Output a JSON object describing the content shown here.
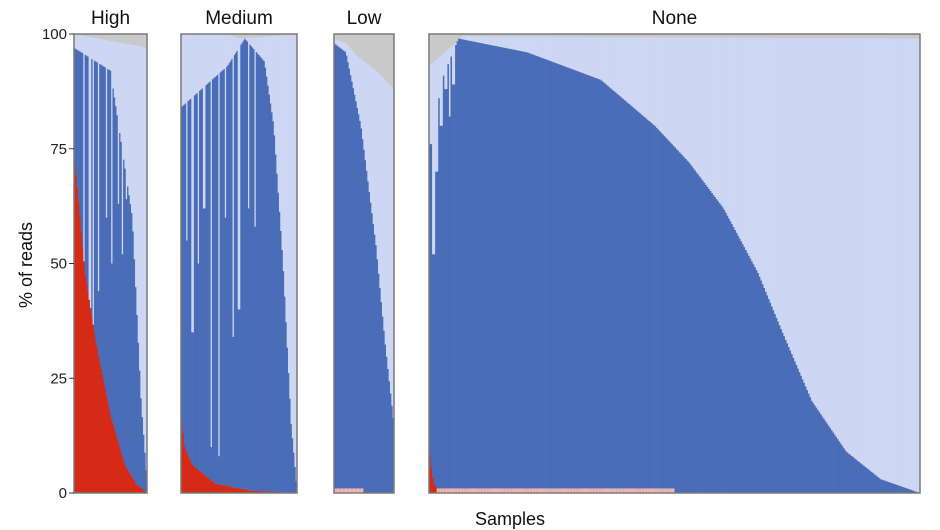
{
  "chart_data": {
    "type": "bar",
    "stacked": true,
    "xlabel": "Samples",
    "ylabel": "% of reads",
    "ylim": [
      0,
      100
    ],
    "yticks": [
      0,
      25,
      50,
      75,
      100
    ],
    "colors": {
      "red": "#d42a16",
      "pink": "#f2b8b2",
      "blue": "#4a6db8",
      "light_blue": "#cdd6f2",
      "grey": "#c9c9c9"
    },
    "panels": [
      {
        "title": "High",
        "samples": 55,
        "red_profile": [
          [
            0,
            73
          ],
          [
            0.05,
            66
          ],
          [
            0.15,
            48
          ],
          [
            0.3,
            33
          ],
          [
            0.5,
            17
          ],
          [
            0.7,
            6
          ],
          [
            0.85,
            2
          ],
          [
            1.0,
            0
          ]
        ],
        "blue_profile": [
          [
            0,
            97
          ],
          [
            0.5,
            92
          ],
          [
            0.8,
            60
          ],
          [
            0.92,
            20
          ],
          [
            1.0,
            3
          ]
        ],
        "top_profile": [
          [
            0,
            100
          ],
          [
            1.0,
            97
          ]
        ],
        "light_cuts": [
          [
            0.13,
            37
          ],
          [
            0.22,
            20
          ],
          [
            0.27,
            33
          ],
          [
            0.34,
            44
          ],
          [
            0.45,
            60
          ],
          [
            0.52,
            50
          ],
          [
            0.61,
            63
          ],
          [
            0.66,
            52
          ],
          [
            0.72,
            64
          ],
          [
            0.79,
            74
          ],
          [
            0.86,
            70
          ],
          [
            0.9,
            44
          ]
        ]
      },
      {
        "title": "Medium",
        "samples": 90,
        "red_profile": [
          [
            0,
            17
          ],
          [
            0.03,
            10
          ],
          [
            0.1,
            6
          ],
          [
            0.3,
            2
          ],
          [
            0.6,
            0.5
          ],
          [
            1.0,
            0
          ]
        ],
        "blue_profile": [
          [
            0,
            84
          ],
          [
            0.4,
            93
          ],
          [
            0.55,
            99
          ],
          [
            0.72,
            94
          ],
          [
            0.8,
            80
          ],
          [
            0.88,
            50
          ],
          [
            0.95,
            15
          ],
          [
            1.0,
            1
          ]
        ],
        "top_profile": [
          [
            0,
            100
          ],
          [
            0.4,
            100
          ],
          [
            0.5,
            99
          ],
          [
            1.0,
            100
          ]
        ],
        "light_cuts": [
          [
            0.05,
            55
          ],
          [
            0.1,
            35
          ],
          [
            0.15,
            50
          ],
          [
            0.2,
            62
          ],
          [
            0.26,
            10
          ],
          [
            0.33,
            8
          ],
          [
            0.38,
            60
          ],
          [
            0.45,
            34
          ],
          [
            0.5,
            40
          ],
          [
            0.58,
            62
          ],
          [
            0.64,
            58
          ]
        ]
      },
      {
        "title": "Low",
        "samples": 45,
        "red_profile": [
          [
            0,
            0.5
          ],
          [
            1.0,
            0
          ]
        ],
        "blue_profile": [
          [
            0,
            98
          ],
          [
            0.2,
            96
          ],
          [
            0.45,
            80
          ],
          [
            0.7,
            54
          ],
          [
            0.85,
            33
          ],
          [
            1.0,
            15
          ]
        ],
        "top_profile": [
          [
            0,
            99
          ],
          [
            0.2,
            98
          ],
          [
            0.4,
            95
          ],
          [
            0.7,
            92
          ],
          [
            1.0,
            88
          ]
        ],
        "light_cuts": []
      },
      {
        "title": "None",
        "samples": 320,
        "red_profile": [
          [
            0,
            10
          ],
          [
            0.004,
            6
          ],
          [
            0.01,
            2
          ],
          [
            0.02,
            0.5
          ],
          [
            0.07,
            0
          ]
        ],
        "blue_profile": [
          [
            0,
            83
          ],
          [
            0.06,
            99
          ],
          [
            0.2,
            96
          ],
          [
            0.35,
            90
          ],
          [
            0.46,
            80
          ],
          [
            0.53,
            72
          ],
          [
            0.6,
            62
          ],
          [
            0.67,
            48
          ],
          [
            0.72,
            35
          ],
          [
            0.78,
            20
          ],
          [
            0.85,
            9
          ],
          [
            0.92,
            3
          ],
          [
            1.0,
            0
          ]
        ],
        "top_profile": [
          [
            0,
            93
          ],
          [
            0.07,
            99.5
          ],
          [
            1.0,
            99
          ]
        ],
        "light_cuts": [
          [
            0.004,
            76
          ],
          [
            0.01,
            52
          ],
          [
            0.015,
            70
          ],
          [
            0.02,
            86
          ],
          [
            0.025,
            80
          ],
          [
            0.035,
            88
          ],
          [
            0.042,
            82
          ],
          [
            0.05,
            89
          ]
        ]
      }
    ]
  }
}
